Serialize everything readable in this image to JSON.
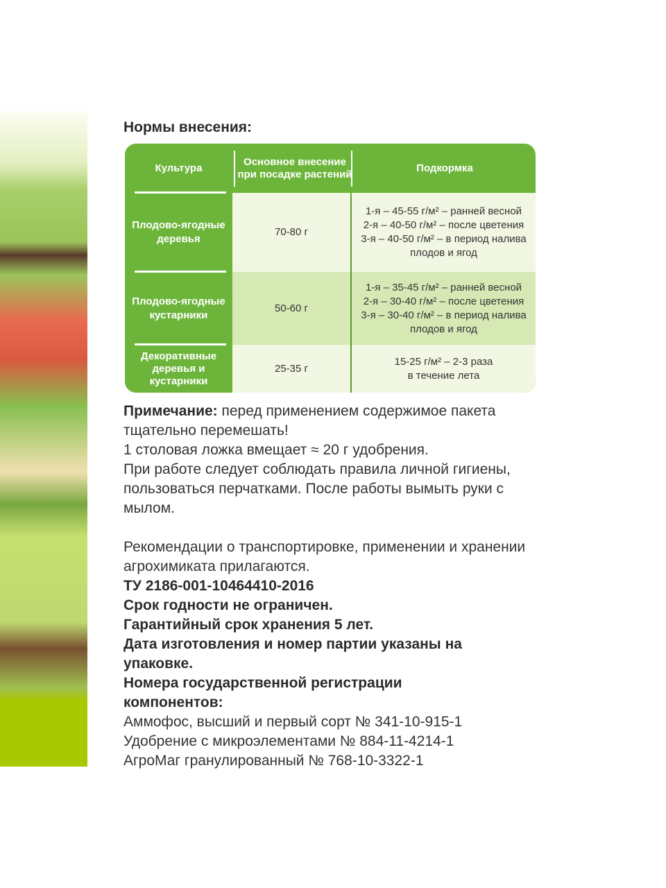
{
  "title": "Нормы внесения:",
  "table": {
    "headers": [
      "Культура",
      "Основное внесение при посадке растений",
      "Подкормка"
    ],
    "rows": [
      {
        "culture": "Плодово-ягодные деревья",
        "base": "70-80 г",
        "feeding": [
          "1-я – 45-55 г/м² – ранней весной",
          "2-я – 40-50 г/м² – после цветения",
          "3-я – 40-50 г/м² – в период налива",
          "плодов и ягод"
        ]
      },
      {
        "culture": "Плодово-ягодные кустарники",
        "base": "50-60 г",
        "feeding": [
          "1-я – 35-45 г/м² – ранней весной",
          "2-я – 30-40 г/м² – после цветения",
          "3-я – 30-40 г/м² – в период налива",
          "плодов и ягод"
        ]
      },
      {
        "culture": "Декоративные деревья и кустарники",
        "base": "25-35 г",
        "feeding": [
          "15-25 г/м² – 2-3 раза",
          "в течение лета"
        ]
      }
    ]
  },
  "note": {
    "label": "Примечание:",
    "text": " перед применением содержимое пакета тщательно перемешать!"
  },
  "spoon": "1 столовая ложка вмещает ≈ 20 г удобрения.",
  "hygiene": "При работе следует соблюдать правила личной гигиены, пользоваться перчатками. После работы вымыть руки с мылом.",
  "recommendations": "Рекомендации о транспортировке, применении и хранении агрохимиката прилагаются.",
  "tu": "ТУ 2186-001-10464410-2016",
  "shelf_life": "Срок годности не ограничен.",
  "warranty": "Гарантийный срок хранения 5 лет.",
  "date": "Дата изготовления и номер партии указаны на упаковке.",
  "registration_title": "Номера государственной регистрации компонентов:",
  "registrations": [
    "Аммофос, высший и первый сорт № 341-10-915-1",
    "Удобрение с микроэлементами № 884-11-4214-1",
    "АгроМаг гранулированный № 768-10-3322-1"
  ],
  "colors": {
    "table_green": "#6cb53a",
    "strip_lime": "#a8c800"
  }
}
